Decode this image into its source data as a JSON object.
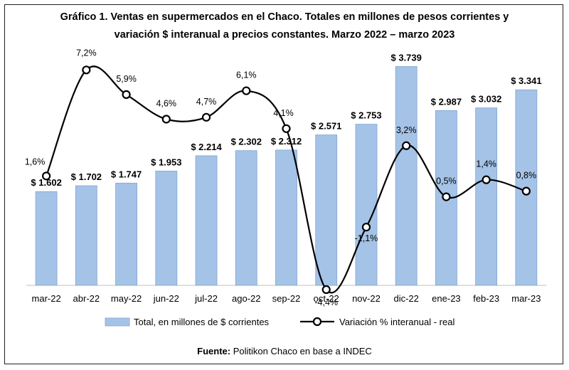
{
  "chart_data": {
    "type": "bar",
    "title_line1": "Gráfico 1. Ventas en supermercados en el Chaco. Totales en millones de pesos corrientes y",
    "title_line2": "variación $ interanual a precios constantes. Marzo 2022 – marzo 2023",
    "categories": [
      "mar-22",
      "abr-22",
      "may-22",
      "jun-22",
      "jul-22",
      "ago-22",
      "sep-22",
      "oct-22",
      "nov-22",
      "dic-22",
      "ene-23",
      "feb-23",
      "mar-23"
    ],
    "series": [
      {
        "name": "Total, en millones de $ corrientes",
        "type": "bar",
        "values": [
          1602,
          1702,
          1747,
          1953,
          2214,
          2302,
          2312,
          2571,
          2753,
          3739,
          2987,
          3032,
          3341
        ],
        "labels": [
          "$ 1.602",
          "$ 1.702",
          "$ 1.747",
          "$ 1.953",
          "$ 2.214",
          "$ 2.302",
          "$ 2.312",
          "$ 2.571",
          "$ 2.753",
          "$ 3.739",
          "$ 2.987",
          "$ 3.032",
          "$ 3.341"
        ],
        "color": "#a5c3e6"
      },
      {
        "name": "Variación % interanual - real",
        "type": "line",
        "values": [
          1.6,
          7.2,
          5.9,
          4.6,
          4.7,
          6.1,
          4.1,
          -4.4,
          -1.1,
          3.2,
          0.5,
          1.4,
          0.8
        ],
        "labels": [
          "1,6%",
          "7,2%",
          "5,9%",
          "4,6%",
          "4,7%",
          "6,1%",
          "4,1%",
          "-4,4%",
          "-1,1%",
          "3,2%",
          "0,5%",
          "1,4%",
          "0,8%"
        ],
        "color": "#000000"
      }
    ],
    "bar_axis_range": [
      0,
      4000
    ],
    "line_axis_range": [
      -5,
      8
    ],
    "grid": false,
    "legend_position": "bottom"
  },
  "source": {
    "label": "Fuente:",
    "text": " Politikon Chaco en base a INDEC"
  }
}
